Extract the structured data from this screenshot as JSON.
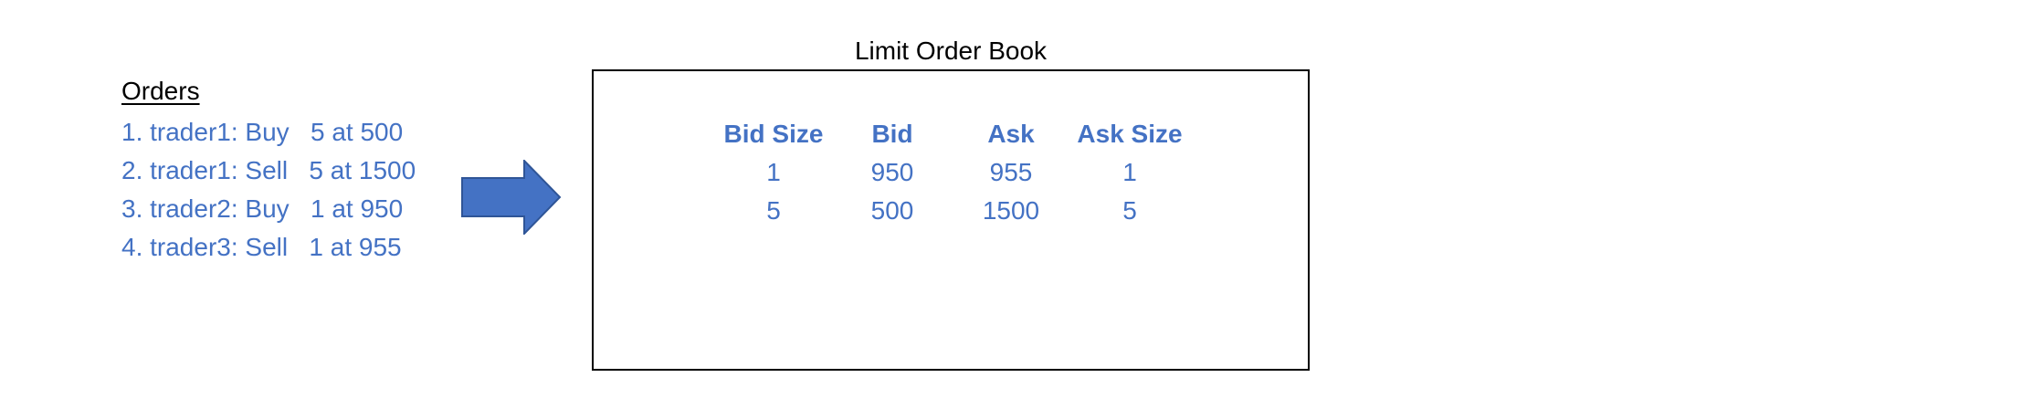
{
  "orders": {
    "title": "Orders",
    "items": [
      "1. trader1: Buy   5 at 500",
      "2. trader1: Sell   5 at 1500",
      "3. trader2: Buy   1 at 950",
      "4. trader3: Sell   1 at 955"
    ]
  },
  "book": {
    "title": "Limit Order Book",
    "headers": [
      "Bid Size",
      "Bid",
      "Ask",
      "Ask Size"
    ],
    "rows": [
      [
        "1",
        "950",
        "955",
        "1"
      ],
      [
        "5",
        "500",
        "1500",
        "5"
      ]
    ]
  },
  "colors": {
    "accent": "#4472c4",
    "arrow_fill": "#4472c4",
    "arrow_stroke": "#2f5597",
    "text": "#000000"
  }
}
